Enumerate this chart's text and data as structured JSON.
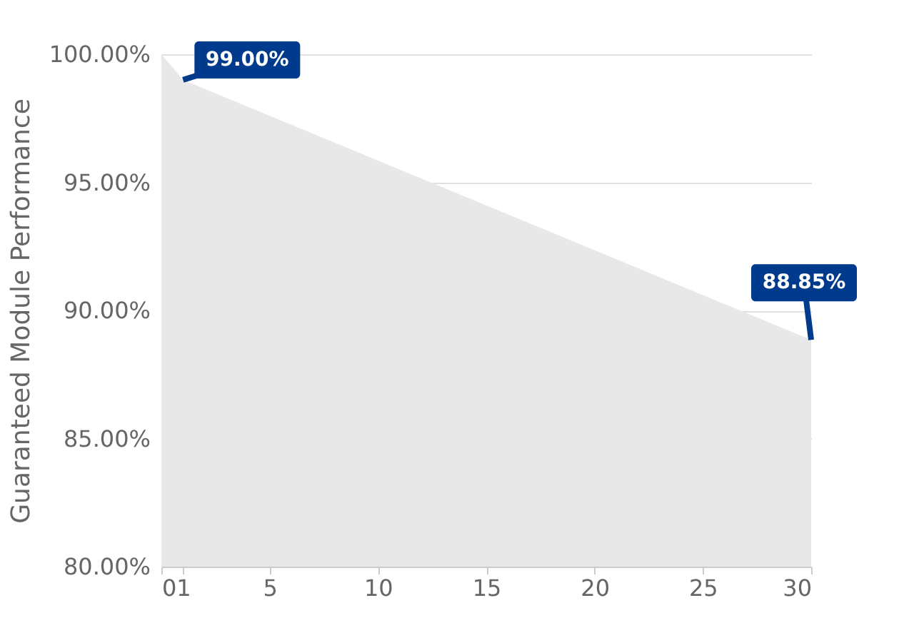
{
  "chart_data": {
    "type": "area",
    "ylabel": "Guaranteed Module Performance",
    "x": [
      0,
      1,
      30
    ],
    "series": [
      {
        "color": "#e8e8e8",
        "values": [
          100,
          99,
          88.85
        ],
        "value_labels": [
          null,
          "99.00%",
          "88.85%"
        ]
      }
    ],
    "xlim": [
      0,
      30
    ],
    "xticks": [
      0,
      1,
      5,
      10,
      15,
      20,
      25,
      30
    ],
    "ylim": [
      80,
      100
    ],
    "yticks": [
      {
        "value": 80,
        "label": "80.00%"
      },
      {
        "value": 85,
        "label": "85.00%"
      },
      {
        "value": 90,
        "label": "90.00%"
      },
      {
        "value": 95,
        "label": "95.00%"
      },
      {
        "value": 100,
        "label": "100.00%"
      }
    ],
    "grid": "y"
  }
}
